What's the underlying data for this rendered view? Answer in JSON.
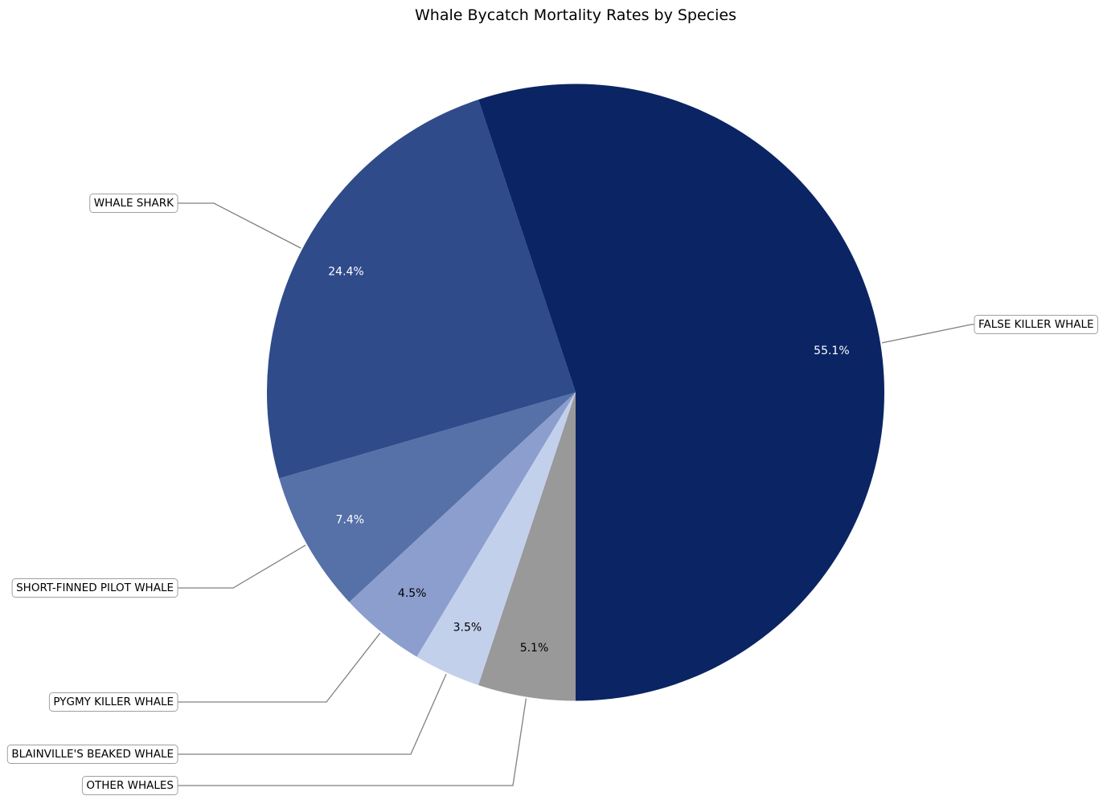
{
  "chart_data": {
    "type": "pie",
    "title": "Whale Bycatch Mortality Rates by Species",
    "start_angle_deg": 270,
    "direction": "counterclockwise",
    "slices": [
      {
        "label": "FALSE KILLER WHALE",
        "value": 55.1,
        "pct_label": "55.1%",
        "color": "#0b2463",
        "pct_color": "#ffffff"
      },
      {
        "label": "WHALE SHARK",
        "value": 24.4,
        "pct_label": "24.4%",
        "color": "#2f4b8a",
        "pct_color": "#ffffff"
      },
      {
        "label": "SHORT-FINNED PILOT WHALE",
        "value": 7.4,
        "pct_label": "7.4%",
        "color": "#5670a8",
        "pct_color": "#ffffff"
      },
      {
        "label": "PYGMY KILLER WHALE",
        "value": 4.5,
        "pct_label": "4.5%",
        "color": "#8c9ecd",
        "pct_color": "#000000"
      },
      {
        "label": "BLAINVILLE'S BEAKED WHALE",
        "value": 3.5,
        "pct_label": "3.5%",
        "color": "#c3d0ec",
        "pct_color": "#000000"
      },
      {
        "label": "OTHER WHALES",
        "value": 5.1,
        "pct_label": "5.1%",
        "color": "#999999",
        "pct_color": "#000000"
      }
    ]
  }
}
